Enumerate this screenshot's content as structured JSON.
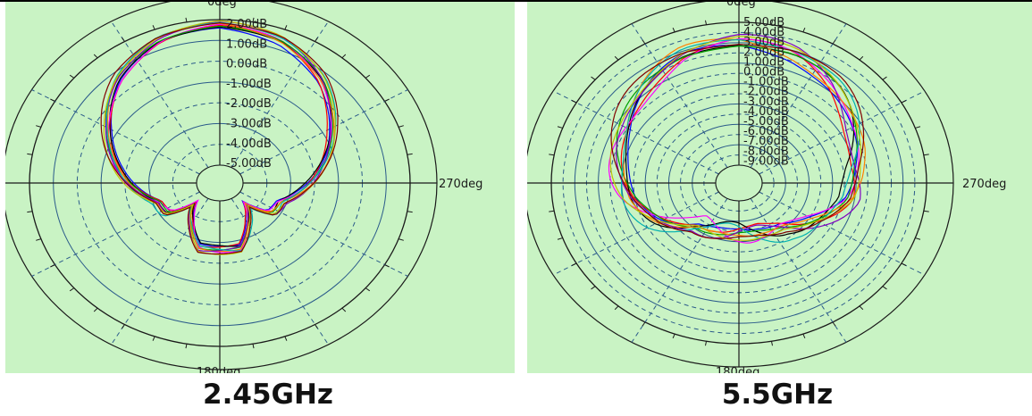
{
  "chart_data": [
    {
      "type": "polar",
      "title": "2.45GHz",
      "angle_labels": {
        "top": "0deg",
        "right": "270deg",
        "bottom": "180deg"
      },
      "radial_ticks": [
        "2.00dB",
        "1.00dB",
        "0.00dB",
        "-1.00dB",
        "-2.00dB",
        "-3.00dB",
        "-4.00dB",
        "-5.00dB"
      ],
      "grid": true,
      "series_colors": [
        "#0000ff",
        "#ff0000",
        "#000000",
        "#ff00ff",
        "#00a000",
        "#ff8000",
        "#8000c0",
        "#00b0b0",
        "#c0c000",
        "#800000"
      ],
      "pattern_db": [
        [
          0,
          1.8
        ],
        [
          20,
          1.5
        ],
        [
          40,
          0.7
        ],
        [
          60,
          -0.5
        ],
        [
          80,
          -1.6
        ],
        [
          95,
          -2.4
        ],
        [
          110,
          -3.2
        ],
        [
          125,
          -3.3
        ],
        [
          135,
          -4.4
        ],
        [
          150,
          -3.6
        ],
        [
          165,
          -2.6
        ],
        [
          180,
          -2.6
        ],
        [
          195,
          -2.6
        ],
        [
          210,
          -3.6
        ],
        [
          225,
          -4.4
        ],
        [
          235,
          -3.3
        ],
        [
          250,
          -3.2
        ],
        [
          265,
          -2.4
        ],
        [
          280,
          -1.6
        ],
        [
          300,
          -0.5
        ],
        [
          320,
          0.7
        ],
        [
          340,
          1.5
        ],
        [
          360,
          1.8
        ]
      ]
    },
    {
      "type": "polar",
      "title": "5.5GHz",
      "angle_labels": {
        "top": "0deg",
        "right": "270deg",
        "bottom": "180deg"
      },
      "radial_ticks": [
        "5.00dB",
        "4.00dB",
        "3.00dB",
        "2.00dB",
        "1.00dB",
        "0.00dB",
        "-1.00dB",
        "-2.00dB",
        "-3.00dB",
        "-4.00dB",
        "-5.00dB",
        "-6.00dB",
        "-7.00dB",
        "-8.00dB",
        "-9.00dB"
      ],
      "grid": true,
      "series_colors": [
        "#0000ff",
        "#ff0000",
        "#000000",
        "#ff00ff",
        "#00a000",
        "#ff8000",
        "#8000c0",
        "#00b0b0",
        "#c0c000",
        "#800000"
      ],
      "pattern_db": [
        [
          0,
          3.2
        ],
        [
          20,
          2.8
        ],
        [
          40,
          1.6
        ],
        [
          60,
          0.4
        ],
        [
          80,
          -0.6
        ],
        [
          100,
          -1.6
        ],
        [
          120,
          -3.2
        ],
        [
          140,
          -5.2
        ],
        [
          160,
          -5.6
        ],
        [
          180,
          -5.8
        ],
        [
          200,
          -5.6
        ],
        [
          220,
          -5.0
        ],
        [
          240,
          -3.4
        ],
        [
          260,
          -1.4
        ],
        [
          280,
          -0.8
        ],
        [
          300,
          0.4
        ],
        [
          320,
          1.8
        ],
        [
          340,
          2.8
        ],
        [
          360,
          3.2
        ]
      ]
    }
  ],
  "captions": {
    "left": "2.45GHz",
    "right": "5.5GHz"
  }
}
